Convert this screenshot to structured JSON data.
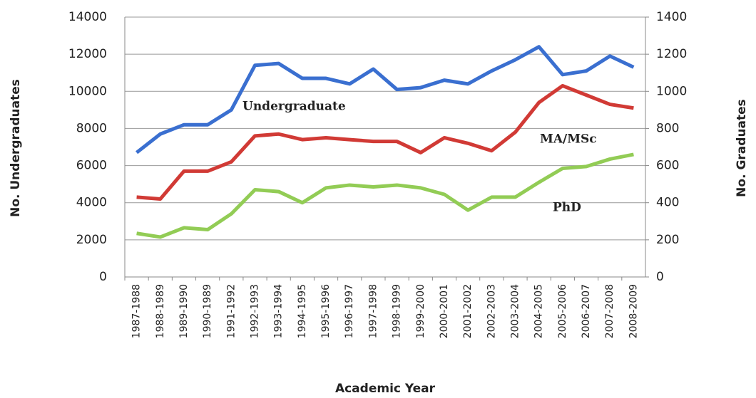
{
  "chart_data": {
    "type": "line",
    "x_label": "Academic Year",
    "y_label": "No. Undergraduates",
    "y2_label": "No. Graduates",
    "categories": [
      "1987-1988",
      "1988-1989",
      "1989-1990",
      "1990-1989",
      "1991-1992",
      "1992-1993",
      "1993-1994",
      "1994-1995",
      "1995-1996",
      "1996-1997",
      "1997-1998",
      "1998-1999",
      "1999-2000",
      "2000-2001",
      "2001-2002",
      "2002-2003",
      "2003-2004",
      "2004-2005",
      "2005-2006",
      "2006-2007",
      "2007-2008",
      "2008-2009"
    ],
    "series": [
      {
        "name": "Undergraduate",
        "color": "#3a6fd0",
        "values": [
          6700,
          7700,
          8200,
          8200,
          9000,
          11400,
          11500,
          10700,
          10700,
          10400,
          11200,
          10100,
          10200,
          10600,
          10400,
          11100,
          11700,
          12400,
          10900,
          11100,
          11900,
          11300
        ]
      },
      {
        "name": "MA/MSc",
        "color": "#d13a35",
        "axis": "y2",
        "values": [
          430,
          420,
          570,
          570,
          620,
          760,
          770,
          740,
          750,
          740,
          730,
          730,
          670,
          750,
          720,
          680,
          780,
          940,
          1030,
          980,
          930,
          910
        ]
      },
      {
        "name": "PhD",
        "color": "#92cc55",
        "axis": "y2",
        "values": [
          235,
          215,
          265,
          255,
          340,
          470,
          460,
          400,
          480,
          495,
          485,
          495,
          480,
          445,
          360,
          430,
          430,
          510,
          585,
          595,
          635,
          660
        ]
      }
    ],
    "ylim": [
      0,
      14000
    ],
    "yticks": [
      0,
      2000,
      4000,
      6000,
      8000,
      10000,
      12000,
      14000
    ],
    "y2lim": [
      0,
      1400
    ],
    "y2ticks": [
      0,
      200,
      400,
      600,
      800,
      1000,
      1200,
      1400
    ],
    "grid": true
  }
}
